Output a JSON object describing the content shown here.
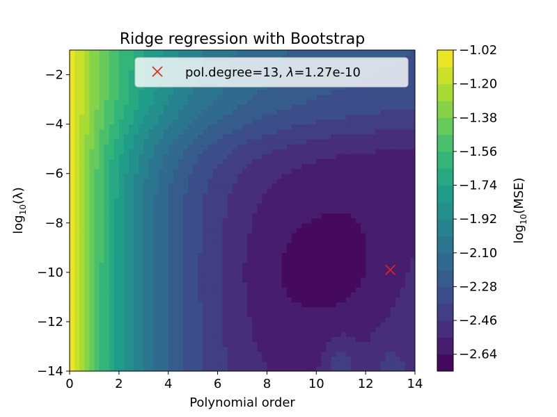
{
  "chart_data": {
    "type": "heatmap",
    "title": "Ridge regression with Bootstrap",
    "xlabel": "Polynomial order",
    "ylabel": "log10(λ)",
    "ylabel_parts": {
      "prefix": "log",
      "sub": "10",
      "suffix": "(λ)"
    },
    "xlim": [
      0,
      14
    ],
    "ylim": [
      -14,
      -1
    ],
    "x_ticks": [
      0,
      2,
      4,
      6,
      8,
      10,
      12,
      14
    ],
    "y_ticks": [
      -2,
      -4,
      -6,
      -8,
      -10,
      -12,
      -14
    ],
    "x_tick_labels": [
      "0",
      "2",
      "4",
      "6",
      "8",
      "10",
      "12",
      "14"
    ],
    "y_tick_labels": [
      "−2",
      "−4",
      "−6",
      "−8",
      "−10",
      "−12",
      "−14"
    ],
    "colormap": "viridis",
    "colorbar": {
      "label": "log10(MSE)",
      "label_parts": {
        "prefix": "log",
        "sub": "10",
        "suffix": "(MSE)"
      },
      "range": [
        -2.73,
        -1.02
      ],
      "ticks": [
        -1.02,
        -1.2,
        -1.38,
        -1.56,
        -1.74,
        -1.92,
        -2.1,
        -2.28,
        -2.46,
        -2.64
      ],
      "tick_labels": [
        "−1.02",
        "−1.20",
        "−1.38",
        "−1.56",
        "−1.74",
        "−1.92",
        "−2.10",
        "−2.28",
        "−2.46",
        "−2.64"
      ]
    },
    "minimum_marker": {
      "x": 13,
      "y": -9.9,
      "color": "#e8231c"
    },
    "legend": {
      "placement": "top-right",
      "text_prefix": "pol.degree=13, ",
      "text_lambda": "λ",
      "text_suffix": "=1.27e-10"
    }
  }
}
